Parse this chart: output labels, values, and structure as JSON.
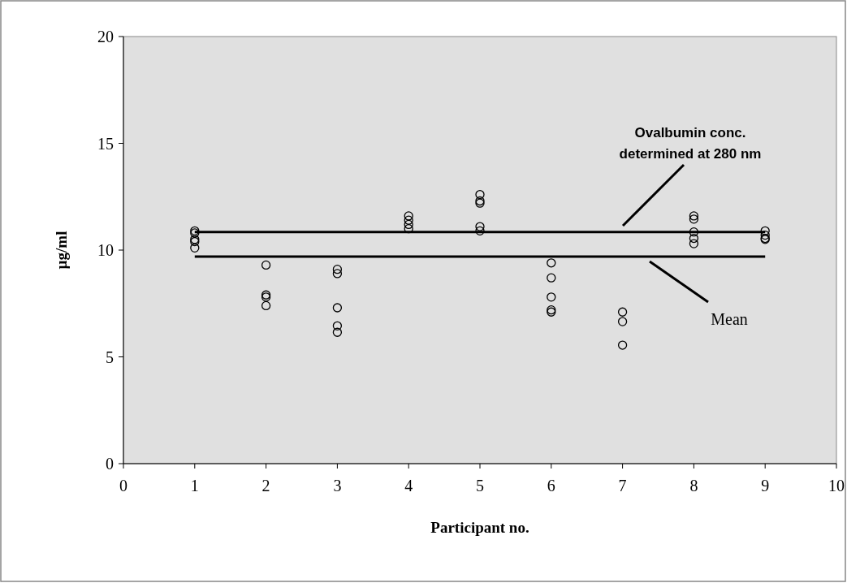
{
  "chart_data": {
    "type": "scatter",
    "xlabel": "Participant no.",
    "ylabel": "µg/ml",
    "xlim": [
      0,
      10
    ],
    "ylim": [
      0,
      20
    ],
    "xticks": [
      0,
      1,
      2,
      3,
      4,
      5,
      6,
      7,
      8,
      9,
      10
    ],
    "yticks": [
      0,
      5,
      10,
      15,
      20
    ],
    "grid": false,
    "series": [
      {
        "marker": "circle",
        "color": "#000000",
        "x": [
          1,
          1,
          1,
          1,
          1,
          2,
          2,
          2,
          2,
          3,
          3,
          3,
          3,
          3,
          4,
          4,
          4,
          4,
          5,
          5,
          5,
          5,
          5,
          6,
          6,
          6,
          6,
          6,
          7,
          7,
          7,
          8,
          8,
          8,
          8,
          8,
          9,
          9,
          9,
          9
        ],
        "values": [
          10.9,
          10.8,
          10.5,
          10.4,
          10.1,
          9.3,
          7.9,
          7.8,
          7.4,
          9.1,
          8.9,
          7.3,
          6.45,
          6.15,
          11.6,
          11.4,
          11.2,
          11.0,
          12.6,
          12.3,
          12.2,
          11.1,
          10.9,
          9.4,
          8.7,
          7.8,
          7.2,
          7.1,
          7.1,
          6.65,
          5.55,
          11.6,
          11.45,
          10.85,
          10.55,
          10.3,
          10.9,
          10.7,
          10.55,
          10.5
        ]
      },
      {
        "type": "line",
        "marker": "none",
        "color": "#000000",
        "line_style": "solid",
        "x": [
          1,
          9
        ],
        "values": [
          10.85,
          10.85
        ]
      },
      {
        "type": "line",
        "marker": "none",
        "color": "#000000",
        "line_style": "solid",
        "x": [
          1,
          9
        ],
        "values": [
          9.7,
          9.7
        ]
      }
    ],
    "annotations": [
      "Ovalbumin  conc.\ndetermined at 280 nm",
      "Mean"
    ]
  }
}
